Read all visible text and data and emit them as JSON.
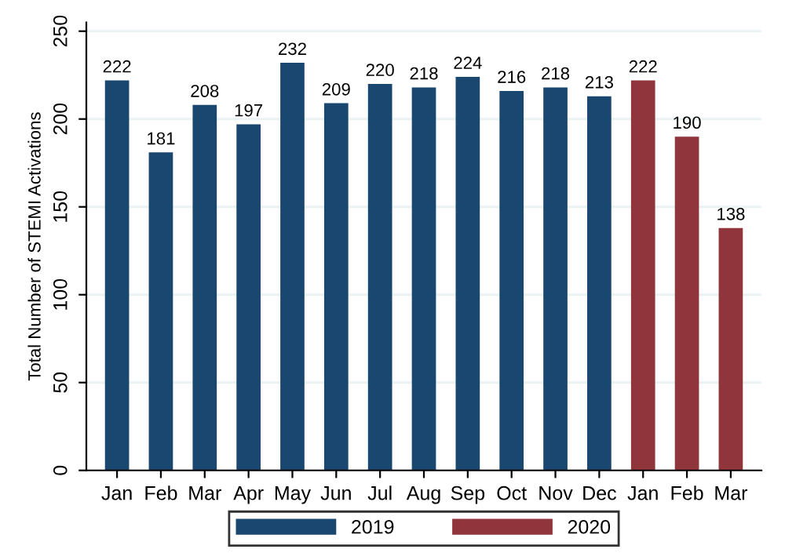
{
  "chart_data": {
    "type": "bar",
    "ylabel": "Total Number of STEMI Activations",
    "categories": [
      "Jan",
      "Feb",
      "Mar",
      "Apr",
      "May",
      "Jun",
      "Jul",
      "Aug",
      "Sep",
      "Oct",
      "Nov",
      "Dec",
      "Jan",
      "Feb",
      "Mar"
    ],
    "series": [
      {
        "name": "2019",
        "color": "#1a476f",
        "values": [
          222,
          181,
          208,
          197,
          232,
          209,
          220,
          218,
          224,
          216,
          218,
          213,
          null,
          null,
          null
        ]
      },
      {
        "name": "2020",
        "color": "#90353b",
        "values": [
          null,
          null,
          null,
          null,
          null,
          null,
          null,
          null,
          null,
          null,
          null,
          null,
          222,
          190,
          138
        ]
      }
    ],
    "ylim": [
      0,
      255
    ],
    "yticks": [
      0,
      50,
      100,
      150,
      200,
      250
    ],
    "grid": "y",
    "legend": "bottom",
    "data_labels": true
  }
}
